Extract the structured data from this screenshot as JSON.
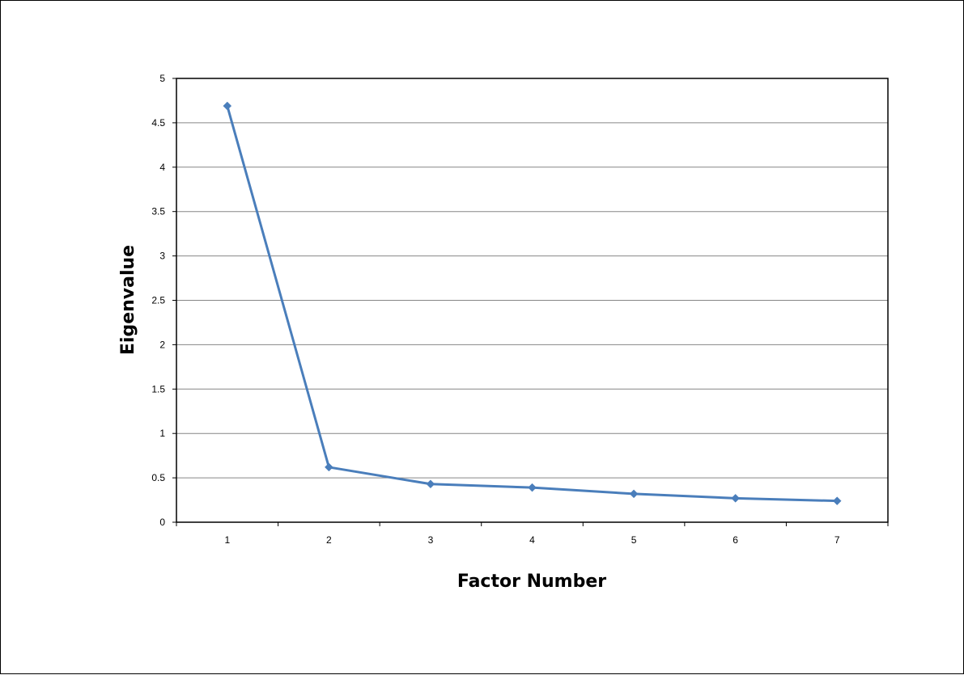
{
  "chart_data": {
    "type": "line",
    "xlabel": "Factor Number",
    "ylabel": "Eigenvalue",
    "categories": [
      "1",
      "2",
      "3",
      "4",
      "5",
      "6",
      "7"
    ],
    "x": [
      1,
      2,
      3,
      4,
      5,
      6,
      7
    ],
    "series": [
      {
        "values": [
          4.69,
          0.62,
          0.43,
          0.39,
          0.32,
          0.27,
          0.24
        ]
      }
    ],
    "ylim": [
      0,
      5
    ],
    "yticks": [
      "0",
      "0.5",
      "1",
      "1.5",
      "2",
      "2.5",
      "3",
      "3.5",
      "4",
      "4.5",
      "5"
    ],
    "grid": "horizontal",
    "legend": "none",
    "colors": {
      "line": "#4a7ebb",
      "marker": "#4a7ebb",
      "grid": "#868686",
      "axis": "#000000"
    },
    "marker": "diamond"
  }
}
